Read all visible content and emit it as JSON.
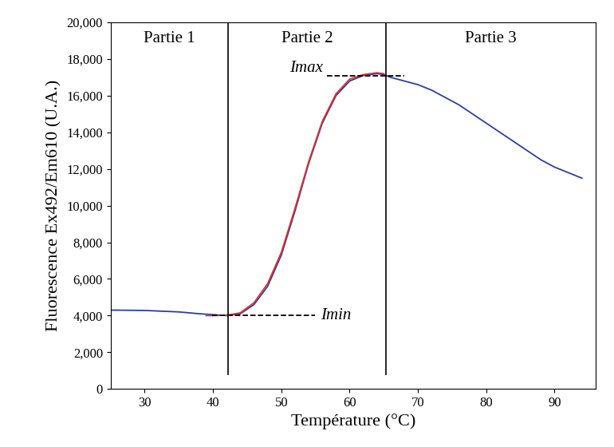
{
  "chart_data": {
    "type": "line",
    "x_label": "Température (°C)",
    "y_label": "Fluorescence Ex492/Em610 (U.A.)",
    "series": [
      {
        "color": "#2b3fa0",
        "line_style": "solid",
        "x": [
          25,
          30,
          35,
          38,
          40,
          42,
          44,
          46,
          48,
          50,
          52,
          54,
          56,
          58,
          60,
          62,
          64,
          65,
          66,
          68,
          70,
          72,
          74,
          76,
          78,
          80,
          82,
          84,
          86,
          88,
          90,
          92,
          94
        ],
        "values": [
          4300,
          4280,
          4200,
          4100,
          4050,
          4000,
          4100,
          4600,
          5600,
          7300,
          9700,
          12300,
          14500,
          16000,
          16800,
          17100,
          17200,
          17150,
          17000,
          16800,
          16600,
          16300,
          15900,
          15500,
          15000,
          14500,
          14000,
          13500,
          13000,
          12500,
          12100,
          11800,
          11500
        ]
      },
      {
        "color": "#e03030",
        "line_style": "solid",
        "x": [
          39,
          40,
          42,
          44,
          46,
          48,
          50,
          52,
          54,
          56,
          58,
          60,
          62,
          64,
          65
        ],
        "values": [
          4000,
          4000,
          4020,
          4150,
          4700,
          5750,
          7450,
          9850,
          12400,
          14600,
          16100,
          16900,
          17150,
          17250,
          17200
        ]
      }
    ],
    "regions": {
      "labels": [
        "Partie 1",
        "Partie 2",
        "Partie 3"
      ],
      "boundaries": [
        42.2,
        65.3
      ]
    },
    "references": [
      {
        "label": "Imax",
        "y": 17100,
        "x": [
          56.7,
          68
        ]
      },
      {
        "label": "Imin",
        "y": 4000,
        "x": [
          39.9,
          54.9
        ]
      }
    ],
    "xlim": [
      25,
      96
    ],
    "ylim": [
      0,
      20000
    ],
    "xticks": [
      30,
      40,
      50,
      60,
      70,
      80,
      90
    ],
    "yticks": [
      0,
      {
        "value": 2000,
        "label": "2,000"
      },
      {
        "value": 4000,
        "label": "4,000"
      },
      {
        "value": 6000,
        "label": "6,000"
      },
      {
        "value": 8000,
        "label": "8,000"
      },
      {
        "value": 10000,
        "label": "10,000"
      },
      {
        "value": 12000,
        "label": "12,000"
      },
      {
        "value": 14000,
        "label": "14,000"
      },
      {
        "value": 16000,
        "label": "16,000"
      },
      {
        "value": 18000,
        "label": "18,000"
      },
      {
        "value": 20000,
        "label": "20,000"
      }
    ],
    "grid": false
  }
}
